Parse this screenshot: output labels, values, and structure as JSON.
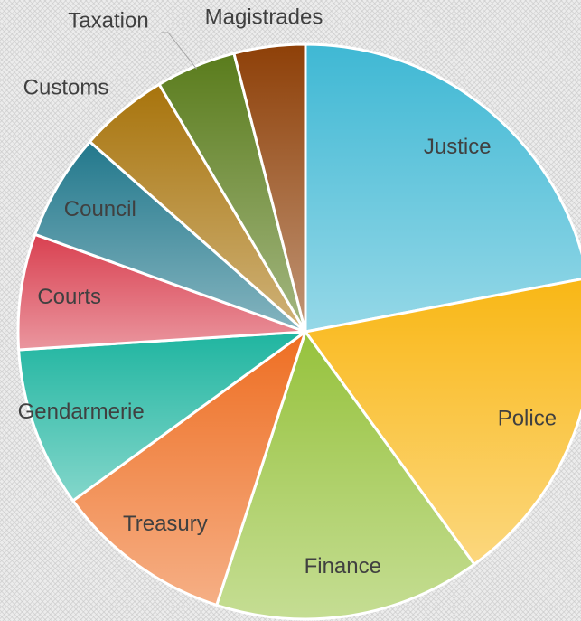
{
  "chart_data": {
    "type": "pie",
    "categories": [
      "Justice",
      "Police",
      "Finance",
      "Treasury",
      "Gendarmerie",
      "Courts",
      "Council",
      "Customs",
      "Taxation",
      "Magistrades"
    ],
    "values": [
      22,
      18,
      15,
      10,
      9,
      6.5,
      6,
      5,
      4.5,
      4
    ],
    "colors": [
      "#3fb8d4",
      "#f9b715",
      "#96c23c",
      "#ee6e22",
      "#1fb5a0",
      "#d94050",
      "#22788c",
      "#a8740c",
      "#5a7c1c",
      "#8e4008"
    ]
  }
}
